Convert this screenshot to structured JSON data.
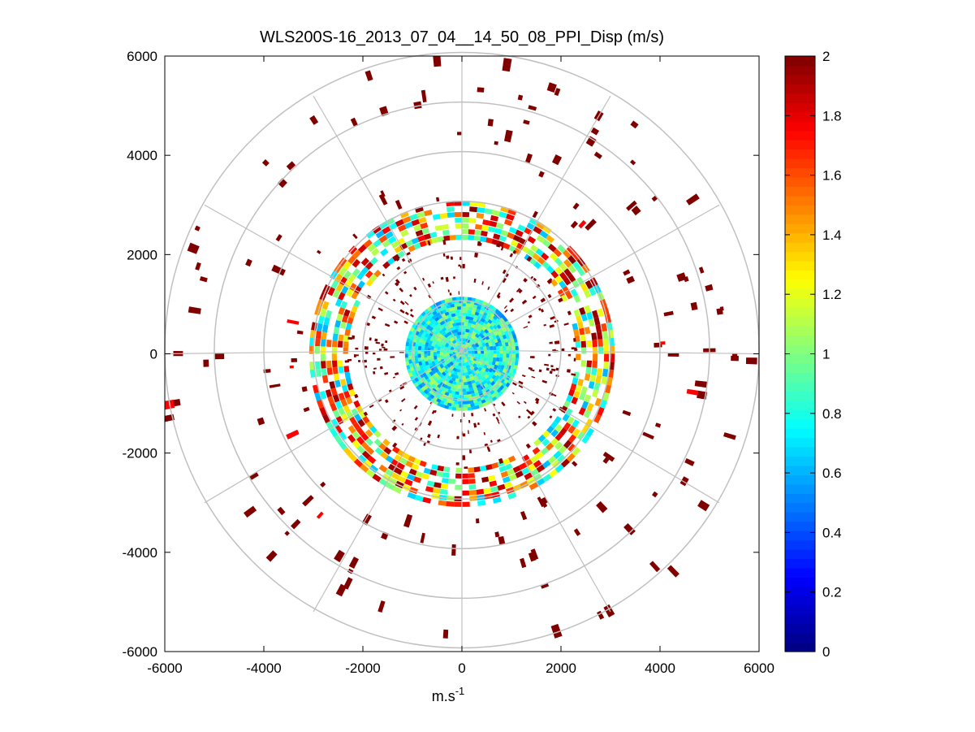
{
  "chart_data": {
    "type": "heatmap",
    "subtype": "polar PPI scan",
    "title": "WLS200S-16_2013_07_04__14_50_08_PPI_Disp (m/s)",
    "xlabel_base": "m.s",
    "xlabel_sup": "-1",
    "ylabel": "",
    "xlim": [
      -6000,
      6000
    ],
    "ylim": [
      -6000,
      6000
    ],
    "x_ticks": [
      -6000,
      -4000,
      -2000,
      0,
      2000,
      4000,
      6000
    ],
    "y_ticks": [
      6000,
      4000,
      2000,
      0,
      -2000,
      -4000,
      -6000
    ],
    "x_tick_labels": [
      "-6000",
      "-4000",
      "-2000",
      "0",
      "2000",
      "4000",
      "6000"
    ],
    "y_tick_labels": [
      "6000",
      "4000",
      "2000",
      "0",
      "-2000",
      "-4000",
      "-6000"
    ],
    "range_rings": [
      1000,
      2000,
      3000,
      4000,
      5000,
      6000
    ],
    "spoke_angles_deg": [
      0,
      30,
      60,
      90,
      120,
      150,
      180,
      210,
      240,
      270,
      300,
      330
    ],
    "colorbar": {
      "range": [
        0,
        2
      ],
      "ticks": [
        0,
        0.2,
        0.4,
        0.6,
        0.8,
        1,
        1.2,
        1.4,
        1.6,
        1.8,
        2
      ],
      "tick_labels": [
        "0",
        "0.2",
        "0.4",
        "0.6",
        "0.8",
        "1",
        "1.2",
        "1.4",
        "1.6",
        "1.8",
        "2"
      ],
      "colormap": "jet",
      "levels": 64
    },
    "zones": [
      {
        "name": "core",
        "r_min": 0,
        "r_max": 1150,
        "value_range": [
          0.5,
          1.1
        ]
      },
      {
        "name": "inner-ring-band",
        "r_min": 2300,
        "r_max": 3100,
        "value_range": [
          0.6,
          2
        ]
      },
      {
        "name": "sparse-inner",
        "r_min": 1150,
        "r_max": 2300,
        "value": 2
      },
      {
        "name": "sparse-outer",
        "r_min": 3100,
        "r_max": 6000,
        "value": 2
      }
    ],
    "grid": true,
    "grid_color": "#c0c0c0"
  }
}
